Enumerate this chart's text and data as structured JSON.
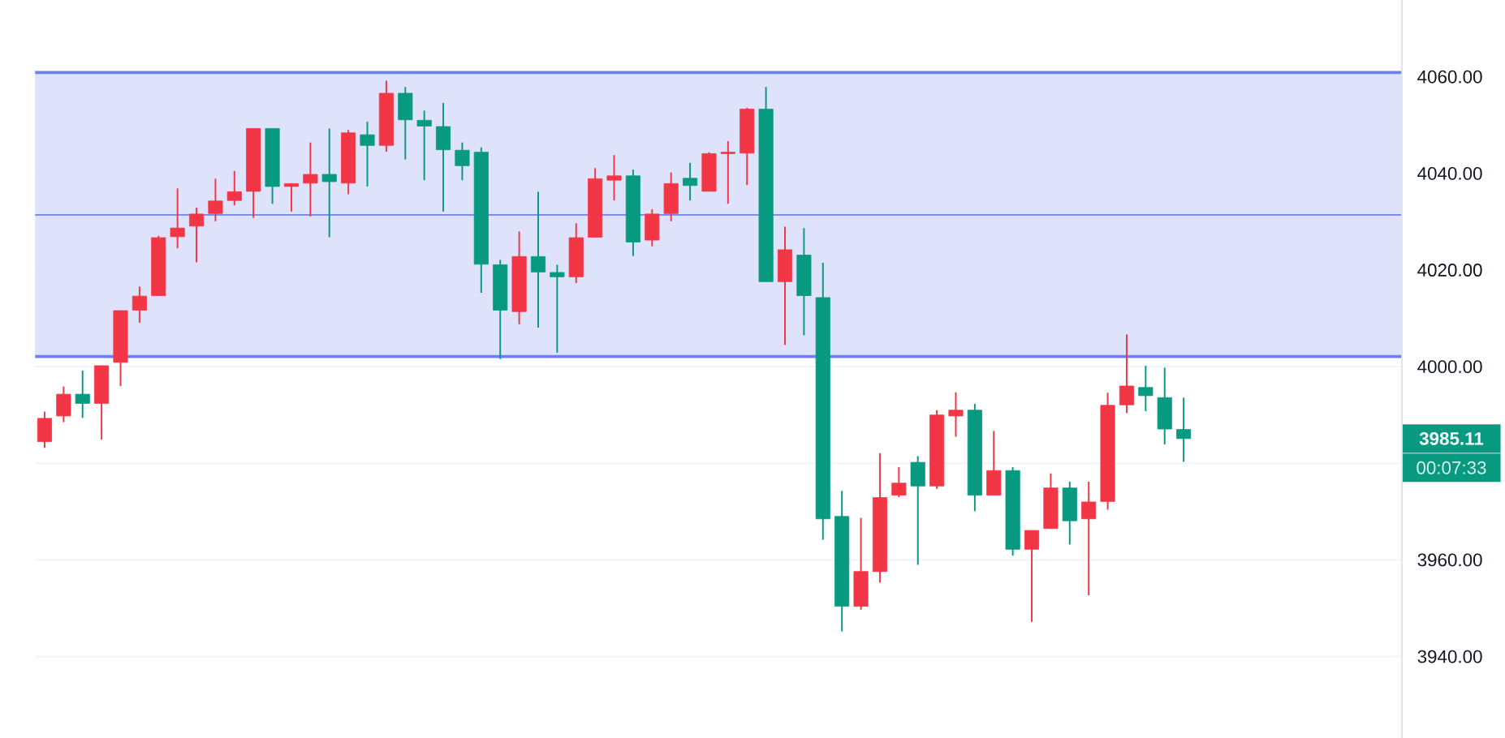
{
  "chart_data": {
    "type": "candlestick",
    "categories": [
      null,
      null,
      null,
      null,
      null,
      null,
      null,
      null,
      null,
      null,
      null,
      null,
      null,
      null,
      null,
      null,
      null,
      null,
      null,
      null,
      null,
      null,
      null,
      null,
      null,
      null,
      null,
      null,
      null,
      null,
      null,
      null,
      null,
      null,
      null,
      null,
      null,
      null,
      null,
      null,
      null,
      null,
      null,
      null,
      null,
      null,
      null,
      null,
      null,
      null,
      null,
      null,
      null,
      null,
      null,
      null,
      null,
      null,
      null,
      null,
      null,
      null,
      null,
      null,
      null,
      null,
      null,
      null,
      null,
      null,
      null,
      null
    ],
    "ohlc": [
      [
        3984.5,
        3990.7,
        3983.2,
        3989.3
      ],
      [
        3989.8,
        3995.9,
        3988.5,
        3994.3
      ],
      [
        3994.3,
        3999.2,
        3989.4,
        3992.4
      ],
      [
        3992.4,
        4000.2,
        3984.9,
        4000.2
      ],
      [
        4000.9,
        4011.6,
        3996.0,
        4011.6
      ],
      [
        4011.7,
        4016.6,
        4009.1,
        4014.6
      ],
      [
        4014.7,
        4027.1,
        4014.7,
        4026.7
      ],
      [
        4026.9,
        4036.9,
        4024.5,
        4028.7
      ],
      [
        4029.1,
        4032.9,
        4021.6,
        4031.6
      ],
      [
        4031.7,
        4038.9,
        4030.1,
        4034.3
      ],
      [
        4034.4,
        4040.5,
        4033.4,
        4036.2
      ],
      [
        4036.3,
        4049.3,
        4030.8,
        4049.3
      ],
      [
        4049.3,
        4049.3,
        4033.7,
        4037.3
      ],
      [
        4037.3,
        4037.9,
        4032.1,
        4037.9
      ],
      [
        4038.0,
        4046.4,
        4031.1,
        4039.8
      ],
      [
        4039.8,
        4049.3,
        4026.8,
        4038.3
      ],
      [
        4038.0,
        4049.0,
        4035.7,
        4048.4
      ],
      [
        4048.0,
        4050.7,
        4037.3,
        4045.8
      ],
      [
        4045.8,
        4059.2,
        4044.5,
        4056.6
      ],
      [
        4056.6,
        4057.9,
        4042.9,
        4051.1
      ],
      [
        4051.0,
        4053.0,
        4038.6,
        4049.8
      ],
      [
        4049.7,
        4054.6,
        4032.1,
        4044.9
      ],
      [
        4044.8,
        4046.4,
        4038.6,
        4041.6
      ],
      [
        4044.4,
        4045.4,
        4015.3,
        4021.2
      ],
      [
        4021.1,
        4022.1,
        4001.6,
        4011.7
      ],
      [
        4011.4,
        4028.0,
        4008.8,
        4022.8
      ],
      [
        4022.8,
        4036.2,
        4008.1,
        4019.6
      ],
      [
        4019.5,
        4021.1,
        4002.9,
        4018.6
      ],
      [
        4018.6,
        4029.7,
        4017.3,
        4026.7
      ],
      [
        4026.8,
        4041.1,
        4026.8,
        4038.9
      ],
      [
        4038.6,
        4043.8,
        4034.4,
        4039.5
      ],
      [
        4039.5,
        4040.8,
        4022.9,
        4025.8
      ],
      [
        4026.2,
        4032.6,
        4024.9,
        4031.6
      ],
      [
        4031.7,
        4040.2,
        4030.1,
        4037.9
      ],
      [
        4039.0,
        4042.2,
        4034.4,
        4037.5
      ],
      [
        4036.3,
        4044.4,
        4036.3,
        4044.1
      ],
      [
        4044.1,
        4046.7,
        4033.7,
        4044.4
      ],
      [
        4044.2,
        4053.6,
        4037.6,
        4053.3
      ],
      [
        4053.3,
        4057.9,
        4017.6,
        4017.6
      ],
      [
        4017.6,
        4029.0,
        4004.5,
        4024.2
      ],
      [
        4023.1,
        4028.7,
        4006.5,
        4014.7
      ],
      [
        4014.3,
        4021.5,
        3964.2,
        3968.5
      ],
      [
        3969.0,
        3974.3,
        3945.2,
        3950.4
      ],
      [
        3950.4,
        3968.7,
        3949.7,
        3957.6
      ],
      [
        3957.6,
        3982.1,
        3955.3,
        3972.9
      ],
      [
        3973.4,
        3979.2,
        3973.0,
        3975.9
      ],
      [
        3980.2,
        3981.5,
        3959.0,
        3975.3
      ],
      [
        3975.3,
        3991.0,
        3974.7,
        3990.0
      ],
      [
        3989.8,
        3994.7,
        3985.5,
        3991.0
      ],
      [
        3991.0,
        3992.3,
        3970.1,
        3973.4
      ],
      [
        3973.4,
        3986.7,
        3973.4,
        3978.5
      ],
      [
        3978.5,
        3979.2,
        3960.9,
        3962.2
      ],
      [
        3962.2,
        3966.1,
        3947.2,
        3966.1
      ],
      [
        3966.5,
        3977.9,
        3966.5,
        3974.9
      ],
      [
        3974.9,
        3976.2,
        3963.2,
        3968.1
      ],
      [
        3968.5,
        3976.2,
        3952.7,
        3972.0
      ],
      [
        3972.1,
        3994.6,
        3970.4,
        3992.0
      ],
      [
        3992.1,
        4006.7,
        3990.4,
        3996.0
      ],
      [
        3995.7,
        4000.2,
        3990.8,
        3994.0
      ],
      [
        3993.6,
        3999.8,
        3983.9,
        3987.1
      ],
      [
        3987.0,
        3993.6,
        3980.3,
        3985.11
      ],
      null,
      null,
      null,
      null,
      null,
      null,
      null,
      null,
      null,
      null,
      null
    ],
    "colors": [
      "#f23645",
      "#f23645",
      "#089981",
      "#f23645",
      "#f23645",
      "#f23645",
      "#f23645",
      "#f23645",
      "#f23645",
      "#f23645",
      "#f23645",
      "#f23645",
      "#089981",
      "#f23645",
      "#f23645",
      "#089981",
      "#f23645",
      "#089981",
      "#f23645",
      "#089981",
      "#089981",
      "#089981",
      "#089981",
      "#089981",
      "#089981",
      "#f23645",
      "#089981",
      "#089981",
      "#f23645",
      "#f23645",
      "#f23645",
      "#089981",
      "#f23645",
      "#f23645",
      "#089981",
      "#f23645",
      "#f23645",
      "#f23645",
      "#089981",
      "#f23645",
      "#089981",
      "#089981",
      "#089981",
      "#f23645",
      "#f23645",
      "#f23645",
      "#089981",
      "#f23645",
      "#f23645",
      "#089981",
      "#f23645",
      "#089981",
      "#f23645",
      "#f23645",
      "#089981",
      "#f23645",
      "#f23645",
      "#f23645",
      "#089981",
      "#089981",
      "#089981",
      null,
      null,
      null,
      null,
      null,
      null,
      null,
      null,
      null,
      null,
      null
    ],
    "ylim": [
      3923.1,
      4075.9
    ],
    "yticks": [
      {
        "value": 3940,
        "label": "3940.00"
      },
      {
        "value": 3960,
        "label": "3960.00"
      },
      {
        "value": 3980,
        "label": null
      },
      {
        "value": 4000,
        "label": "4000.00"
      },
      {
        "value": 4020,
        "label": "4020.00"
      },
      {
        "value": 4040,
        "label": "4040.00"
      },
      {
        "value": 4060,
        "label": "4060.00"
      }
    ],
    "grid": "y",
    "bands": [
      {
        "axis": "y",
        "from": 4002.1,
        "to": 4060.9,
        "color": "#dfe2fb"
      }
    ],
    "ref_lines": [
      {
        "axis": "y",
        "value": 4002.1,
        "color": "#6f80ee"
      },
      {
        "axis": "y",
        "value": 4031.4,
        "color": "#7d8cf0"
      },
      {
        "axis": "y",
        "value": 4060.9,
        "color": "#6f80ee"
      }
    ],
    "annotations": [
      "3985.11",
      "00:07:33"
    ]
  }
}
